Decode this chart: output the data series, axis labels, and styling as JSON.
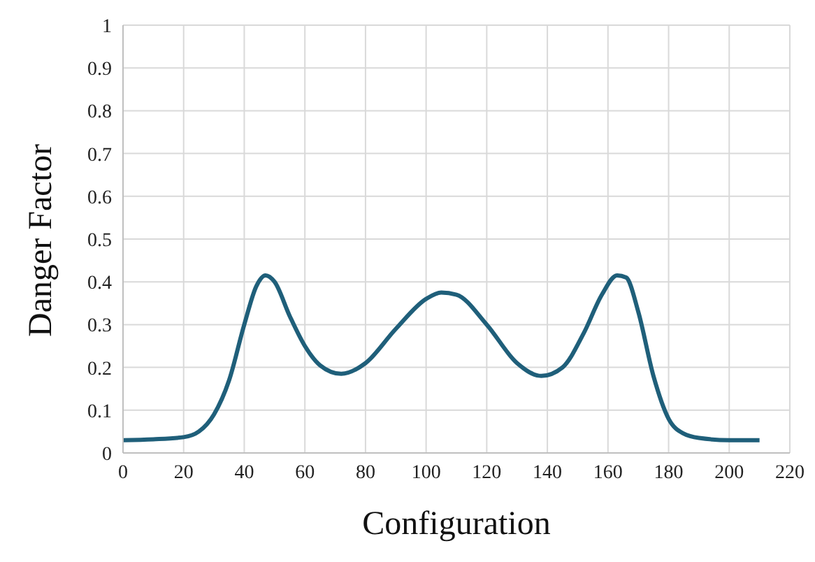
{
  "chart_data": {
    "type": "line",
    "xlabel": "Configuration",
    "ylabel": "Danger Factor",
    "x": [
      0,
      10,
      20,
      25,
      30,
      35,
      40,
      44,
      47,
      50,
      55,
      60,
      65,
      72,
      80,
      90,
      100,
      105,
      110,
      120,
      130,
      138,
      145,
      152,
      158,
      163,
      166,
      170,
      175,
      180,
      185,
      190,
      200,
      210
    ],
    "series": [
      {
        "color": "#1f5f7a",
        "values": [
          0.03,
          0.032,
          0.037,
          0.05,
          0.09,
          0.17,
          0.3,
          0.39,
          0.415,
          0.4,
          0.32,
          0.25,
          0.205,
          0.185,
          0.21,
          0.29,
          0.36,
          0.375,
          0.37,
          0.3,
          0.21,
          0.18,
          0.2,
          0.28,
          0.37,
          0.415,
          0.41,
          0.33,
          0.18,
          0.08,
          0.045,
          0.035,
          0.03,
          0.03
        ]
      }
    ],
    "xlim": [
      0,
      220
    ],
    "xticks": [
      0,
      20,
      40,
      60,
      80,
      100,
      120,
      140,
      160,
      180,
      200,
      220
    ],
    "ylim": [
      0,
      1
    ],
    "yticks": [
      0,
      0.1,
      0.2,
      0.3,
      0.4,
      0.5,
      0.6,
      0.7,
      0.8,
      0.9,
      1
    ],
    "grid": true,
    "legend": false,
    "marker": "none",
    "line_style": "solid"
  }
}
